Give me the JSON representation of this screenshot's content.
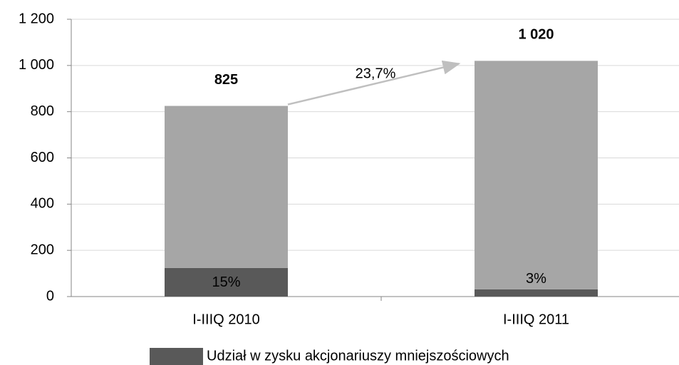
{
  "chart_data": {
    "type": "stacked_bar",
    "categories": [
      "I-IIIQ 2010",
      "I-IIIQ 2011"
    ],
    "series": [
      {
        "name": "Udział w zysku akcjonariuszy mniejszościowych",
        "color": "#595959",
        "values": [
          124,
          31
        ]
      },
      {
        "color": "#a6a6a6",
        "values": [
          701,
          989
        ]
      }
    ],
    "totals": [
      825,
      1020
    ],
    "total_labels": [
      "825",
      "1 020"
    ],
    "shares": [
      15,
      3
    ],
    "share_labels": [
      "15%",
      "3%"
    ],
    "annotation": "23,7%",
    "ylim": [
      0,
      1200
    ],
    "yticks": [
      0,
      200,
      400,
      600,
      800,
      {
        "value": 1000,
        "label": "1 000"
      },
      {
        "value": 1200,
        "label": "1 200"
      }
    ],
    "grid": true,
    "legend": "bottom"
  }
}
